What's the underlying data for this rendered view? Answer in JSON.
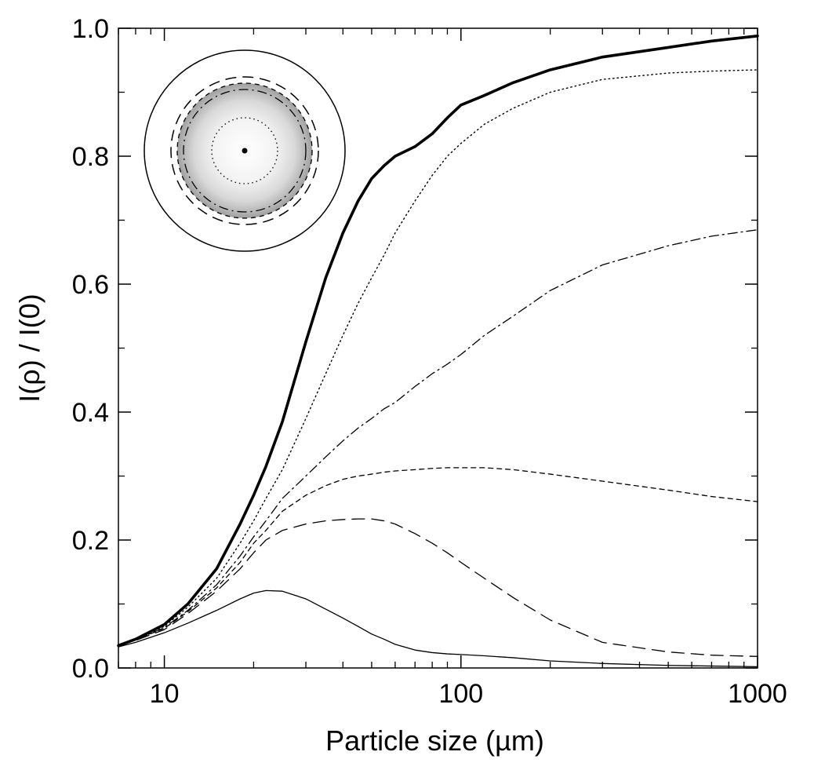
{
  "chart_data": {
    "type": "line",
    "title": "",
    "xlabel": "Particle size (µm)",
    "ylabel": "I(ρ) / I(0)",
    "xscale": "log",
    "xlim": [
      7,
      1000
    ],
    "ylim": [
      0.0,
      1.0
    ],
    "x_ticks": [
      {
        "value": 10,
        "label": "10"
      },
      {
        "value": 100,
        "label": "100"
      },
      {
        "value": 1000,
        "label": "1000"
      }
    ],
    "y_ticks": [
      {
        "value": 0.0,
        "label": "0.0"
      },
      {
        "value": 0.2,
        "label": "0.2"
      },
      {
        "value": 0.4,
        "label": "0.4"
      },
      {
        "value": 0.6,
        "label": "0.6"
      },
      {
        "value": 0.8,
        "label": "0.8"
      },
      {
        "value": 1.0,
        "label": "1.0"
      }
    ],
    "x": [
      7,
      8,
      10,
      12,
      15,
      18,
      20,
      22,
      25,
      30,
      35,
      40,
      45,
      50,
      55,
      60,
      70,
      80,
      90,
      100,
      120,
      150,
      200,
      300,
      500,
      700,
      1000
    ],
    "series": [
      {
        "name": "thick-solid",
        "style": "thick-solid",
        "values": [
          0.035,
          0.045,
          0.068,
          0.1,
          0.155,
          0.225,
          0.27,
          0.315,
          0.385,
          0.51,
          0.61,
          0.68,
          0.73,
          0.765,
          0.785,
          0.8,
          0.815,
          0.835,
          0.86,
          0.88,
          0.895,
          0.915,
          0.935,
          0.955,
          0.97,
          0.98,
          0.988
        ]
      },
      {
        "name": "dotted",
        "style": "dotted",
        "values": [
          0.035,
          0.045,
          0.065,
          0.095,
          0.14,
          0.195,
          0.23,
          0.265,
          0.31,
          0.39,
          0.46,
          0.52,
          0.57,
          0.61,
          0.645,
          0.68,
          0.73,
          0.77,
          0.8,
          0.82,
          0.85,
          0.875,
          0.9,
          0.92,
          0.93,
          0.933,
          0.935
        ]
      },
      {
        "name": "dash-dot",
        "style": "dash-dot",
        "values": [
          0.035,
          0.044,
          0.063,
          0.09,
          0.13,
          0.175,
          0.205,
          0.23,
          0.265,
          0.3,
          0.33,
          0.355,
          0.375,
          0.39,
          0.405,
          0.415,
          0.44,
          0.46,
          0.475,
          0.49,
          0.52,
          0.55,
          0.59,
          0.63,
          0.66,
          0.675,
          0.685
        ]
      },
      {
        "name": "short-dash",
        "style": "short-dash",
        "values": [
          0.035,
          0.044,
          0.062,
          0.088,
          0.125,
          0.165,
          0.195,
          0.215,
          0.245,
          0.27,
          0.285,
          0.295,
          0.3,
          0.303,
          0.306,
          0.308,
          0.31,
          0.312,
          0.313,
          0.313,
          0.313,
          0.31,
          0.303,
          0.292,
          0.278,
          0.268,
          0.26
        ]
      },
      {
        "name": "long-dash",
        "style": "long-dash",
        "values": [
          0.035,
          0.043,
          0.06,
          0.085,
          0.12,
          0.155,
          0.18,
          0.2,
          0.215,
          0.225,
          0.23,
          0.232,
          0.233,
          0.233,
          0.23,
          0.225,
          0.21,
          0.195,
          0.18,
          0.165,
          0.14,
          0.11,
          0.075,
          0.04,
          0.025,
          0.02,
          0.018
        ]
      },
      {
        "name": "thin-solid",
        "style": "thin-solid",
        "values": [
          0.033,
          0.04,
          0.055,
          0.07,
          0.09,
          0.108,
          0.117,
          0.121,
          0.12,
          0.108,
          0.092,
          0.078,
          0.065,
          0.053,
          0.045,
          0.037,
          0.028,
          0.024,
          0.022,
          0.021,
          0.019,
          0.016,
          0.011,
          0.007,
          0.004,
          0.003,
          0.002
        ]
      }
    ],
    "inset": {
      "description": "circle schematic with radii matching series",
      "rings": [
        "dot",
        "dotted",
        "dash-dot",
        "short-dash",
        "long-dash",
        "thin-solid"
      ]
    }
  }
}
